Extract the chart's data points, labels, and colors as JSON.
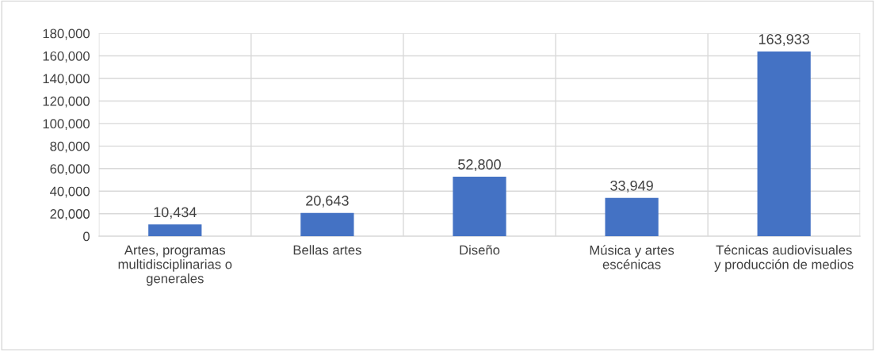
{
  "chart_data": {
    "type": "bar",
    "categories": [
      "Artes, programas multidisciplinarias o generales",
      "Bellas artes",
      "Diseño",
      "Música y artes escénicas",
      "Técnicas audiovisuales y producción de medios"
    ],
    "values": [
      10434,
      20643,
      52800,
      33949,
      163933
    ],
    "value_labels": [
      "10,434",
      "20,643",
      "52,800",
      "33,949",
      "163,933"
    ],
    "color": "#4472c4",
    "ylim": [
      0,
      180000
    ],
    "yticks": [
      0,
      {
        "value": 20000,
        "label": "20,000"
      },
      {
        "value": 40000,
        "label": "40,000"
      },
      {
        "value": 60000,
        "label": "60,000"
      },
      {
        "value": 80000,
        "label": "80,000"
      },
      {
        "value": 100000,
        "label": "100,000"
      },
      {
        "value": 120000,
        "label": "120,000"
      },
      {
        "value": 140000,
        "label": "140,000"
      },
      {
        "value": 160000,
        "label": "160,000"
      },
      {
        "value": 180000,
        "label": "180,000"
      }
    ],
    "grid": true
  }
}
